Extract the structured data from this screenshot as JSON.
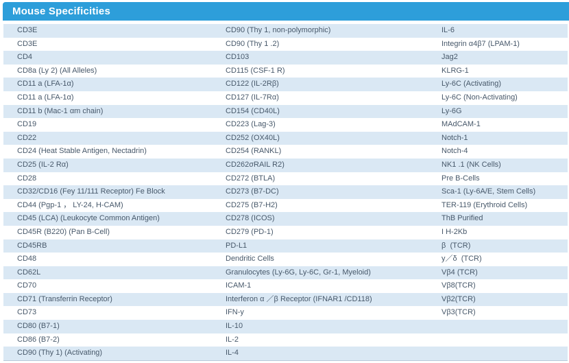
{
  "header": {
    "title": "Mouse Specificities"
  },
  "colors": {
    "header_bg": "#2d9eda",
    "title_text": "#ffffff",
    "row_bg": "#ffffff",
    "row_alt_bg": "#dae8f4",
    "text": "#47586a",
    "bottom_border": "#b7c9d9"
  },
  "table": {
    "columns": 3,
    "rows": [
      [
        "CD3E",
        "CD90 (Thy 1, non-polymorphic)",
        "IL-6"
      ],
      [
        "CD3E",
        "CD90 (Thy 1 .2)",
        "Integrin α4β7 (LPAM-1)"
      ],
      [
        "CD4",
        "CD103",
        "Jag2"
      ],
      [
        "CD8a (Ly 2) (All Alleles)",
        "CD115 (CSF-1 R)",
        "KLRG-1"
      ],
      [
        "CD11 a (LFA-1α)",
        "CD122 (IL-2Rβ)",
        "Ly-6C (Activating)"
      ],
      [
        "CD11 a (LFA-1α)",
        "CD127 (IL-7Rα)",
        "Ly-6C (Non-Activating)"
      ],
      [
        "CD11 b (Mac-1 αm chain)",
        "CD154 (CD40L)",
        "Ly-6G"
      ],
      [
        "CD19",
        "CD223 (Lag-3)",
        "MAdCAM-1"
      ],
      [
        "CD22",
        "CD252 (OX40L)",
        "Notch-1"
      ],
      [
        "CD24 (Heat Stable Antigen, Nectadrin)",
        "CD254 (RANKL)",
        "Notch-4"
      ],
      [
        "CD25 (IL-2 Rα)",
        "CD262σRAIL R2)",
        "NK1 .1 (NK Cells)"
      ],
      [
        "CD28",
        "CD272 (BTLA)",
        "Pre B-Cells"
      ],
      [
        "CD32/CD16 (Fey 11/111 Receptor) Fe Block",
        "CD273 (B7-DC)",
        "Sca-1 (Ly-6A/E, Stem Cells)"
      ],
      [
        "CD44 (Pgp-1 ， LY-24, H-CAM)",
        "CD275 (B7-H2)",
        "TER-119 (Erythroid Cells)"
      ],
      [
        "CD45 (LCA) (Leukocyte Common Antigen)",
        "CD278 (ICOS)",
        "ThB Purified"
      ],
      [
        "CD45R (B220) (Pan B-Cell)",
        "CD279 (PD-1)",
        "I H-2Kb"
      ],
      [
        "CD45RB",
        "PD-L1",
        "β  (TCR)"
      ],
      [
        "CD48",
        "Dendritic Cells",
        "y／δ  (TCR)"
      ],
      [
        "CD62L",
        "Granulocytes (Ly-6G, Ly-6C, Gr-1, Myeloid)",
        "Vβ4 (TCR)"
      ],
      [
        "CD70",
        "ICAM-1",
        "Vβ8(TCR)"
      ],
      [
        "CD71 (Transferrin Receptor)",
        "Interferon α ／β Receptor (IFNAR1 /CD118)",
        "Vβ2(TCR)"
      ],
      [
        "CD73",
        "IFN-y",
        "Vβ3(TCR)"
      ],
      [
        "CD80 (B7-1)",
        "IL-10",
        ""
      ],
      [
        "CD86 (B7-2)",
        "IL-2",
        ""
      ],
      [
        "CD90 (Thy 1) (Activating)",
        "IL-4",
        ""
      ]
    ]
  }
}
